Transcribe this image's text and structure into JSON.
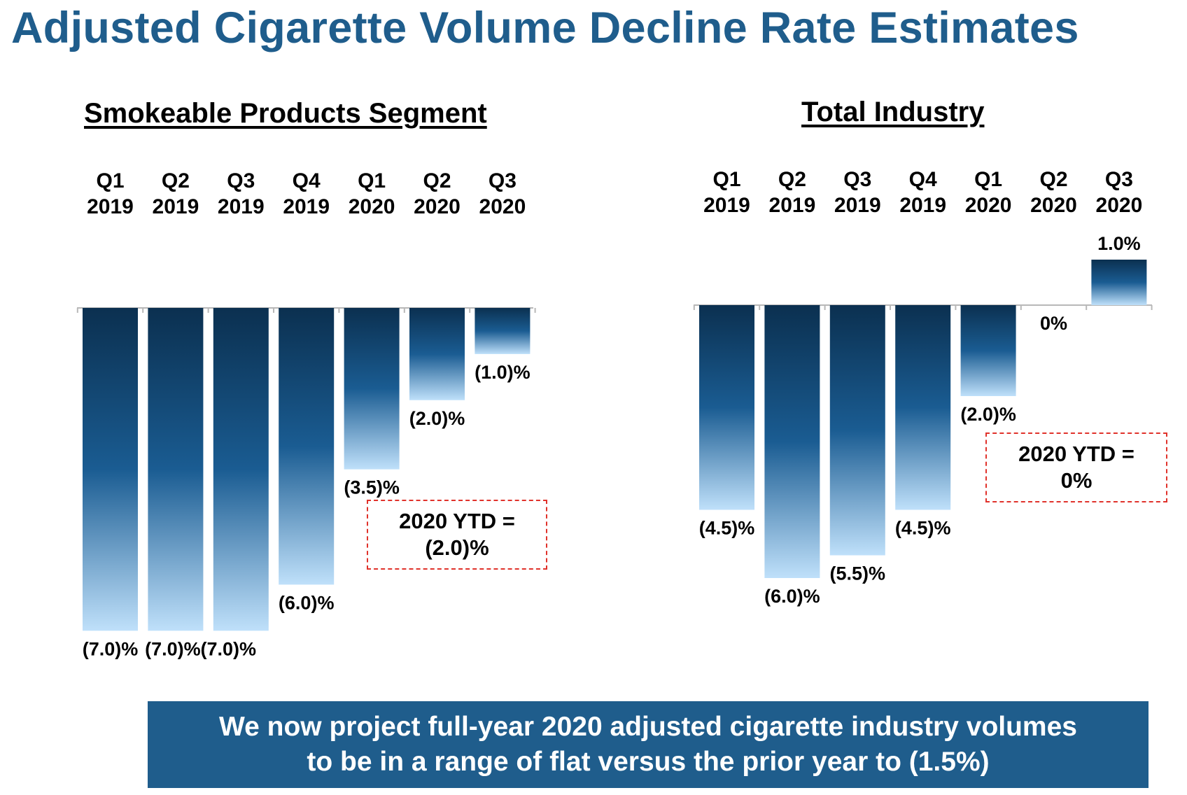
{
  "page": {
    "title": "Adjusted Cigarette Volume Decline Rate Estimates",
    "footer": "We now project full-year 2020 adjusted cigarette industry volumes\nto be in a range of flat versus the prior year to (1.5%)"
  },
  "colors": {
    "title": "#1f5d8c",
    "banner": "#1f5d8c",
    "bar_dark": "#0b3050",
    "bar_mid": "#1a5c92",
    "bar_light": "#bfe0fa",
    "ytd_border": "#e0322b"
  },
  "chart_data": [
    {
      "type": "bar",
      "title": "Smokeable Products Segment",
      "categories": [
        "Q1\n2019",
        "Q2\n2019",
        "Q3\n2019",
        "Q4\n2019",
        "Q1\n2020",
        "Q2\n2020",
        "Q3\n2020"
      ],
      "values": [
        -7.0,
        -7.0,
        -7.0,
        -6.0,
        -3.5,
        -2.0,
        -1.0
      ],
      "data_labels": [
        "(7.0)%",
        "(7.0)%",
        "(7.0)%",
        "(6.0)%",
        "(3.5)%",
        "(2.0)%",
        "(1.0)%"
      ],
      "annotation": "2020 YTD =\n(2.0)%",
      "unit": "%",
      "ylim": [
        -7.0,
        0
      ]
    },
    {
      "type": "bar",
      "title": "Total Industry",
      "categories": [
        "Q1\n2019",
        "Q2\n2019",
        "Q3\n2019",
        "Q4\n2019",
        "Q1\n2020",
        "Q2\n2020",
        "Q3\n2020"
      ],
      "values": [
        -4.5,
        -6.0,
        -5.5,
        -4.5,
        -2.0,
        0.0,
        1.0
      ],
      "data_labels": [
        "(4.5)%",
        "(6.0)%",
        "(5.5)%",
        "(4.5)%",
        "(2.0)%",
        "0%",
        "1.0%"
      ],
      "annotation": "2020 YTD =\n0%",
      "unit": "%",
      "ylim": [
        -6.0,
        1.0
      ]
    }
  ]
}
